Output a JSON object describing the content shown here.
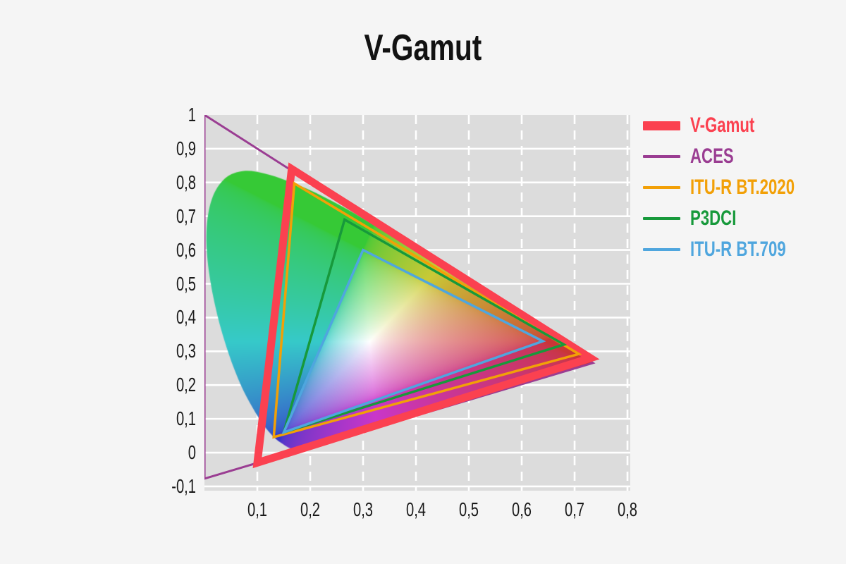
{
  "page": {
    "background": "#f5f5f5",
    "text_color": "#1a1a1a"
  },
  "chart_data": {
    "type": "line",
    "subtype": "cie-1931-chromaticity-gamut-comparison",
    "title": "V-Gamut",
    "xlabel": "",
    "ylabel": "",
    "xlim": [
      0,
      0.8053
    ],
    "ylim": [
      -0.1127,
      1.0
    ],
    "grid": {
      "plot_background": "#dcdcdc",
      "line_color": "#ffffff",
      "horizontal_style": "solid",
      "vertical_style": "dashed"
    },
    "x_ticks": {
      "values": [
        0.1,
        0.2,
        0.3,
        0.4,
        0.5,
        0.6,
        0.7,
        0.8
      ],
      "labels": [
        "0,1",
        "0,2",
        "0,3",
        "0,4",
        "0,5",
        "0,6",
        "0,7",
        "0,8"
      ]
    },
    "y_ticks": {
      "values": [
        1,
        0.9,
        0.8,
        0.7,
        0.6,
        0.5,
        0.4,
        0.3,
        0.2,
        0.1,
        0,
        -0.1
      ],
      "labels": [
        "1",
        "0,9",
        "0,8",
        "0,7",
        "0,6",
        "0,5",
        "0,4",
        "0,3",
        "0,2",
        "0,1",
        "0",
        "-0,1"
      ]
    },
    "legend_position": "right",
    "series": [
      {
        "name": "V-Gamut",
        "color": "#fb4150",
        "line_width": 11,
        "points": [
          [
            0.73,
            0.28
          ],
          [
            0.165,
            0.84
          ],
          [
            0.1,
            -0.03
          ]
        ]
      },
      {
        "name": "ACES",
        "color": "#9a3d92",
        "line_width": 3,
        "points": [
          [
            0.7347,
            0.2653
          ],
          [
            0.0,
            1.0
          ],
          [
            0.0001,
            -0.077
          ]
        ]
      },
      {
        "name": "ITU-R BT.2020",
        "color": "#f2a007",
        "line_width": 3.5,
        "points": [
          [
            0.708,
            0.292
          ],
          [
            0.17,
            0.797
          ],
          [
            0.131,
            0.046
          ]
        ]
      },
      {
        "name": "P3DCI",
        "color": "#17993b",
        "line_width": 3.5,
        "points": [
          [
            0.68,
            0.32
          ],
          [
            0.265,
            0.69
          ],
          [
            0.15,
            0.06
          ]
        ]
      },
      {
        "name": "ITU-R BT.709",
        "color": "#4fa6de",
        "line_width": 3.5,
        "points": [
          [
            0.64,
            0.33
          ],
          [
            0.3,
            0.6
          ],
          [
            0.15,
            0.06
          ]
        ]
      }
    ],
    "draw_order": [
      "ACES",
      "V-Gamut",
      "ITU-R BT.2020",
      "P3DCI",
      "ITU-R BT.709"
    ],
    "spectral_locus": [
      [
        0.1741,
        0.005
      ],
      [
        0.1714,
        0.0051
      ],
      [
        0.1644,
        0.0109
      ],
      [
        0.151,
        0.0227
      ],
      [
        0.1355,
        0.0399
      ],
      [
        0.1241,
        0.0578
      ],
      [
        0.1096,
        0.0868
      ],
      [
        0.0913,
        0.1327
      ],
      [
        0.0687,
        0.2007
      ],
      [
        0.0454,
        0.295
      ],
      [
        0.0235,
        0.4127
      ],
      [
        0.0082,
        0.5384
      ],
      [
        0.0039,
        0.6548
      ],
      [
        0.0139,
        0.7502
      ],
      [
        0.0389,
        0.812
      ],
      [
        0.0743,
        0.8338
      ],
      [
        0.1142,
        0.8262
      ],
      [
        0.1547,
        0.8059
      ],
      [
        0.1929,
        0.7816
      ],
      [
        0.2296,
        0.7543
      ],
      [
        0.2658,
        0.7243
      ],
      [
        0.3016,
        0.6923
      ],
      [
        0.3373,
        0.6589
      ],
      [
        0.3731,
        0.6245
      ],
      [
        0.4087,
        0.5896
      ],
      [
        0.4441,
        0.5547
      ],
      [
        0.4788,
        0.5202
      ],
      [
        0.5125,
        0.4866
      ],
      [
        0.5448,
        0.4544
      ],
      [
        0.5752,
        0.4242
      ],
      [
        0.6029,
        0.3965
      ],
      [
        0.627,
        0.3725
      ],
      [
        0.6658,
        0.334
      ],
      [
        0.6915,
        0.3083
      ],
      [
        0.714,
        0.2859
      ],
      [
        0.726,
        0.274
      ],
      [
        0.7347,
        0.2653
      ]
    ]
  }
}
